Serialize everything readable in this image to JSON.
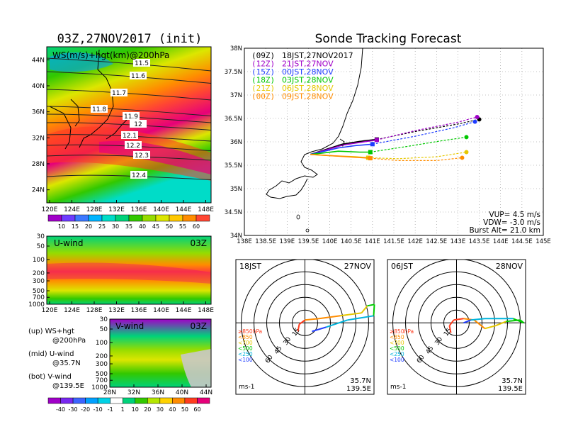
{
  "titles": {
    "left": "03Z,27NOV2017 (init)",
    "right": "Sonde Tracking Forecast"
  },
  "map_panel": {
    "label": "WS(m/s)+hgt(km)@200hPa",
    "lon_ticks": [
      "120E",
      "124E",
      "128E",
      "132E",
      "136E",
      "140E",
      "144E",
      "148E"
    ],
    "lat_ticks": [
      "24N",
      "28N",
      "32N",
      "36N",
      "40N",
      "44N"
    ],
    "contour_labels": [
      "11.5",
      "11.6",
      "11.7",
      "11.8",
      "11.9",
      "12",
      "12.1",
      "12.2",
      "12.3",
      "12.4"
    ],
    "colorbar_labels": [
      "10",
      "15",
      "20",
      "25",
      "30",
      "35",
      "40",
      "45",
      "50",
      "55",
      "60"
    ],
    "colorbar_colors": [
      "#a000c8",
      "#6e3cff",
      "#3c78ff",
      "#00b4ff",
      "#00dcc8",
      "#00d27a",
      "#32c800",
      "#96dc00",
      "#dce600",
      "#ffc800",
      "#ff8c00",
      "#ff4632"
    ]
  },
  "u_panel": {
    "label": "U-wind",
    "time": "03Z",
    "p_ticks": [
      "30",
      "50",
      "100",
      "200",
      "300",
      "500",
      "700",
      "1000"
    ],
    "lon_ticks": [
      "120E",
      "124E",
      "128E",
      "132E",
      "136E",
      "140E",
      "144E",
      "148E"
    ]
  },
  "v_panel": {
    "label": "V-wind",
    "time": "03Z",
    "p_ticks": [
      "30",
      "50",
      "100",
      "200",
      "300",
      "500",
      "700",
      "1000"
    ],
    "lat_ticks": [
      "28N",
      "32N",
      "36N",
      "40N",
      "44N"
    ]
  },
  "legend_notes": [
    {
      "l1": "(up) WS+hgt",
      "l2": "@200hPa"
    },
    {
      "l1": "(mid) U-wind",
      "l2": "@35.7N"
    },
    {
      "l1": "(bot) V-wind",
      "l2": "@139.5E"
    }
  ],
  "bottom_colorbar": {
    "labels": [
      "-40",
      "-30",
      "-20",
      "-10",
      "-1",
      "1",
      "10",
      "20",
      "30",
      "40",
      "50",
      "60"
    ],
    "colors": [
      "#a000c8",
      "#7828f0",
      "#3c64ff",
      "#00a0ff",
      "#00d2e6",
      "#ffffff",
      "#00d27a",
      "#32c800",
      "#b4e600",
      "#ffd200",
      "#ff8c00",
      "#ff3c1e",
      "#e6007a"
    ]
  },
  "track_map": {
    "lat_ticks": [
      "34N",
      "34.5N",
      "35N",
      "35.5N",
      "36N",
      "36.5N",
      "37N",
      "37.5N",
      "38N"
    ],
    "lon_ticks": [
      "138E",
      "138.5E",
      "139E",
      "139.5E",
      "140E",
      "140.5E",
      "141E",
      "141.5E",
      "142E",
      "142.5E",
      "143E",
      "143.5E",
      "144E",
      "144.5E",
      "145E"
    ],
    "legend": [
      {
        "code": "(09Z)",
        "text": "18JST,27NOV2017",
        "color": "#000000"
      },
      {
        "code": "(12Z)",
        "text": "21JST,27NOV",
        "color": "#a000c8"
      },
      {
        "code": "(15Z)",
        "text": "00JST,28NOV",
        "color": "#1e3cff"
      },
      {
        "code": "(18Z)",
        "text": "03JST,28NOV",
        "color": "#00c800"
      },
      {
        "code": "(21Z)",
        "text": "06JST,28NOV",
        "color": "#e6c800"
      },
      {
        "code": "(00Z)",
        "text": "09JST,28NOV",
        "color": "#ff8c00"
      }
    ],
    "info": [
      "VUP= 4.5 m/s",
      "VDW= -3.0 m/s",
      "Burst Alt= 21.0 km"
    ]
  },
  "chart_data": {
    "type": "line",
    "title": "Sonde Tracking Forecast",
    "xlim": [
      138,
      145
    ],
    "ylim": [
      34,
      38
    ],
    "series": [
      {
        "name": "(09Z) 18JST,27NOV2017",
        "color": "#000000",
        "x": [
          139.55,
          140.3,
          140.8,
          141.1,
          142.0,
          143.0,
          143.5
        ],
        "y": [
          35.73,
          35.95,
          36.02,
          36.05,
          36.22,
          36.38,
          36.48
        ]
      },
      {
        "name": "(12Z) 21JST,27NOV",
        "color": "#a000c8",
        "x": [
          139.55,
          140.3,
          140.8,
          141.1,
          142.0,
          143.0,
          143.45
        ],
        "y": [
          35.73,
          35.93,
          36.0,
          36.04,
          36.24,
          36.42,
          36.53
        ]
      },
      {
        "name": "(15Z) 00JST,28NOV",
        "color": "#1e3cff",
        "x": [
          139.55,
          140.2,
          140.6,
          141.0,
          142.0,
          142.9,
          143.4
        ],
        "y": [
          35.73,
          35.87,
          35.92,
          35.95,
          36.12,
          36.3,
          36.43
        ]
      },
      {
        "name": "(18Z) 03JST,28NOV",
        "color": "#00c800",
        "x": [
          139.55,
          140.2,
          140.7,
          140.95,
          141.8,
          142.6,
          143.2
        ],
        "y": [
          35.73,
          35.8,
          35.78,
          35.78,
          35.9,
          36.02,
          36.1
        ]
      },
      {
        "name": "(21Z) 06JST,28NOV",
        "color": "#e6c800",
        "x": [
          139.55,
          140.1,
          140.6,
          140.9,
          141.6,
          142.5,
          143.2
        ],
        "y": [
          35.73,
          35.7,
          35.68,
          35.66,
          35.64,
          35.68,
          35.78
        ]
      },
      {
        "name": "(00Z) 09JST,28NOV",
        "color": "#ff8c00",
        "x": [
          139.55,
          140.1,
          140.6,
          140.95,
          141.6,
          142.5,
          143.1
        ],
        "y": [
          35.73,
          35.7,
          35.67,
          35.65,
          35.6,
          35.6,
          35.66
        ]
      }
    ]
  },
  "hodo_left": {
    "time": "18JST",
    "date": "27NOV",
    "rings": [
      "15",
      "30",
      "45",
      "60"
    ],
    "loc_lat": "35.7N",
    "loc_lon": "139.5E",
    "unit": "ms-1"
  },
  "hodo_right": {
    "time": "06JST",
    "date": "28NOV",
    "rings": [
      "15",
      "30",
      "45",
      "60"
    ],
    "loc_lat": "35.7N",
    "loc_lon": "139.5E",
    "unit": "ms-1"
  },
  "hodo_legend": [
    {
      "text": "≥850hPa",
      "color": "#ff3c1e"
    },
    {
      "text": "<850",
      "color": "#ff8c00"
    },
    {
      "text": "<700",
      "color": "#e6c800"
    },
    {
      "text": "<500",
      "color": "#00c800"
    },
    {
      "text": "<250",
      "color": "#00b4dc"
    },
    {
      "text": "<100",
      "color": "#1e3cff"
    }
  ]
}
